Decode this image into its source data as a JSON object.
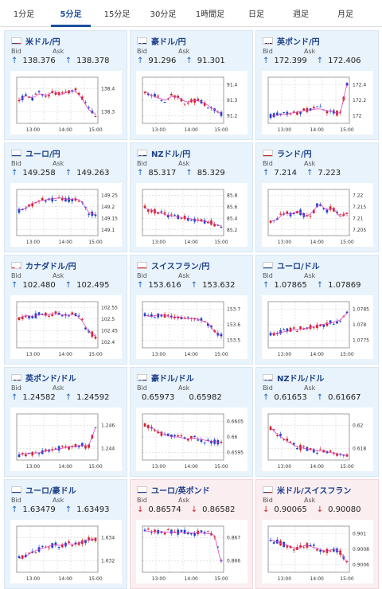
{
  "tabs": [
    {
      "label": "1分足",
      "active": false
    },
    {
      "label": "5分足",
      "active": true
    },
    {
      "label": "15分足",
      "active": false
    },
    {
      "label": "30分足",
      "active": false
    },
    {
      "label": "1時間足",
      "active": false
    },
    {
      "label": "日足",
      "active": false
    },
    {
      "label": "週足",
      "active": false
    },
    {
      "label": "月足",
      "active": false
    }
  ],
  "colors": {
    "up": "#1a5cc7",
    "down": "#d02020",
    "ma": "#e040c0",
    "accent": "#1a4fa0"
  },
  "labels": {
    "bid": "Bid",
    "ask": "Ask"
  },
  "cards": [
    {
      "title": "米ドル/円",
      "flag": "us",
      "dir": "up",
      "bid": "138.376",
      "ask": "138.378",
      "yticks": [
        "138.4",
        "138.3"
      ],
      "xticks": [
        "13:00",
        "14:00",
        "15:00"
      ],
      "seed": 1,
      "trend": [
        0.5,
        0.6,
        0.55,
        0.65,
        0.6,
        0.7,
        0.62,
        0.68,
        0.72,
        0.55,
        0.3,
        0.2
      ]
    },
    {
      "title": "豪ドル/円",
      "flag": "au",
      "dir": "up",
      "bid": "91.296",
      "ask": "91.301",
      "yticks": [
        "91.4",
        "91.3",
        "91.2"
      ],
      "xticks": [
        "13:00",
        "14:00",
        "15:00"
      ],
      "seed": 2,
      "trend": [
        0.7,
        0.6,
        0.55,
        0.5,
        0.6,
        0.55,
        0.45,
        0.5,
        0.48,
        0.4,
        0.3,
        0.2
      ]
    },
    {
      "title": "英ポンド/円",
      "flag": "gb",
      "dir": "up",
      "bid": "172.399",
      "ask": "172.406",
      "yticks": [
        "172.4",
        "172.2",
        "172"
      ],
      "xticks": [
        "13:00",
        "14:00",
        "15:00"
      ],
      "seed": 3,
      "trend": [
        0.15,
        0.18,
        0.2,
        0.22,
        0.25,
        0.28,
        0.3,
        0.32,
        0.28,
        0.25,
        0.2,
        0.85
      ]
    },
    {
      "title": "ユーロ/円",
      "flag": "eu",
      "dir": "up",
      "bid": "149.258",
      "ask": "149.263",
      "yticks": [
        "149.25",
        "149.2",
        "149.15",
        "149.1"
      ],
      "xticks": [
        "13:00",
        "14:00",
        "15:00"
      ],
      "seed": 4,
      "trend": [
        0.55,
        0.6,
        0.7,
        0.75,
        0.78,
        0.8,
        0.82,
        0.78,
        0.8,
        0.75,
        0.5,
        0.45
      ]
    },
    {
      "title": "NZドル/円",
      "flag": "nz",
      "dir": "up",
      "bid": "85.317",
      "ask": "85.329",
      "yticks": [
        "85.8",
        "85.6",
        "85.4",
        "85.2"
      ],
      "xticks": [
        "13:00",
        "14:00",
        "15:00"
      ],
      "seed": 5,
      "trend": [
        0.6,
        0.55,
        0.5,
        0.45,
        0.42,
        0.4,
        0.38,
        0.35,
        0.32,
        0.3,
        0.25,
        0.2
      ]
    },
    {
      "title": "ランド/円",
      "flag": "za",
      "dir": "up",
      "bid": "7.214",
      "ask": "7.223",
      "yticks": [
        "7.22",
        "7.215",
        "7.21",
        "7.205"
      ],
      "xticks": [
        "13:00",
        "14:00",
        "15:00"
      ],
      "seed": 6,
      "trend": [
        0.3,
        0.35,
        0.5,
        0.45,
        0.55,
        0.4,
        0.5,
        0.7,
        0.55,
        0.6,
        0.4,
        0.5
      ]
    },
    {
      "title": "カナダドル/円",
      "flag": "ca",
      "dir": "up",
      "bid": "102.480",
      "ask": "102.495",
      "yticks": [
        "102.55",
        "102.5",
        "102.45",
        "102.4"
      ],
      "xticks": [
        "13:00",
        "14:00",
        "15:00"
      ],
      "seed": 7,
      "trend": [
        0.65,
        0.7,
        0.68,
        0.72,
        0.7,
        0.75,
        0.72,
        0.7,
        0.74,
        0.6,
        0.35,
        0.25
      ]
    },
    {
      "title": "スイスフラン/円",
      "flag": "ch",
      "dir": "up",
      "bid": "153.616",
      "ask": "153.632",
      "yticks": [
        "153.7",
        "153.6",
        "153.5"
      ],
      "xticks": [
        "13:00",
        "14:00",
        "15:00"
      ],
      "seed": 8,
      "trend": [
        0.7,
        0.68,
        0.72,
        0.7,
        0.65,
        0.68,
        0.62,
        0.65,
        0.6,
        0.55,
        0.35,
        0.25
      ]
    },
    {
      "title": "ユーロ/ドル",
      "flag": "euus",
      "dir": "up",
      "bid": "1.07865",
      "ask": "1.07869",
      "yticks": [
        "1.0785",
        "1.078",
        "1.0775"
      ],
      "xticks": [
        "13:00",
        "14:00",
        "15:00"
      ],
      "seed": 9,
      "trend": [
        0.3,
        0.32,
        0.35,
        0.38,
        0.4,
        0.42,
        0.45,
        0.5,
        0.52,
        0.55,
        0.6,
        0.75
      ]
    },
    {
      "title": "英ポンド/ドル",
      "flag": "gbus",
      "dir": "up",
      "bid": "1.24582",
      "ask": "1.24592",
      "yticks": [
        "1.246",
        "1.244"
      ],
      "xticks": [
        "13:00",
        "14:00",
        "15:00"
      ],
      "seed": 10,
      "trend": [
        0.12,
        0.14,
        0.15,
        0.16,
        0.2,
        0.22,
        0.25,
        0.28,
        0.3,
        0.32,
        0.3,
        0.7
      ]
    },
    {
      "title": "豪ドル/ドル",
      "flag": "auus",
      "dir": "flat",
      "bid": "0.65973",
      "ask": "0.65982",
      "yticks": [
        "0.6605",
        "0.66",
        "0.6595"
      ],
      "xticks": [
        "13:00",
        "14:00",
        "15:00"
      ],
      "seed": 11,
      "trend": [
        0.75,
        0.7,
        0.6,
        0.55,
        0.5,
        0.5,
        0.45,
        0.48,
        0.45,
        0.42,
        0.4,
        0.38
      ]
    },
    {
      "title": "NZドル/ドル",
      "flag": "nzus",
      "dir": "up",
      "bid": "0.61653",
      "ask": "0.61667",
      "yticks": [
        "0.62",
        "0.618"
      ],
      "xticks": [
        "13:00",
        "14:00",
        "15:00"
      ],
      "seed": 12,
      "trend": [
        0.7,
        0.55,
        0.45,
        0.35,
        0.28,
        0.25,
        0.22,
        0.2,
        0.18,
        0.15,
        0.12,
        0.1
      ]
    },
    {
      "title": "ユーロ/豪ドル",
      "flag": "euau",
      "dir": "up",
      "bid": "1.63479",
      "ask": "1.63493",
      "yticks": [
        "1.634",
        "1.632"
      ],
      "xticks": [
        "13:00",
        "14:00",
        "15:00"
      ],
      "seed": 13,
      "trend": [
        0.3,
        0.35,
        0.45,
        0.5,
        0.55,
        0.6,
        0.58,
        0.62,
        0.6,
        0.65,
        0.7,
        0.72
      ]
    },
    {
      "title": "ユーロ/英ポンド",
      "flag": "eugb",
      "dir": "down",
      "bid": "0.86574",
      "ask": "0.86582",
      "yticks": [
        "0.867",
        "0.866"
      ],
      "xticks": [
        "13:00",
        "14:00",
        "15:00"
      ],
      "seed": 14,
      "trend": [
        0.9,
        0.88,
        0.88,
        0.87,
        0.87,
        0.86,
        0.86,
        0.85,
        0.85,
        0.84,
        0.82,
        0.2
      ]
    },
    {
      "title": "米ドル/スイスフラン",
      "flag": "usch",
      "dir": "down",
      "bid": "0.90065",
      "ask": "0.90080",
      "yticks": [
        "0.901",
        "0.9008",
        "0.9006"
      ],
      "xticks": [
        "13:00",
        "14:00",
        "15:00"
      ],
      "seed": 15,
      "trend": [
        0.7,
        0.65,
        0.6,
        0.55,
        0.5,
        0.6,
        0.55,
        0.5,
        0.45,
        0.5,
        0.45,
        0.2
      ]
    }
  ]
}
